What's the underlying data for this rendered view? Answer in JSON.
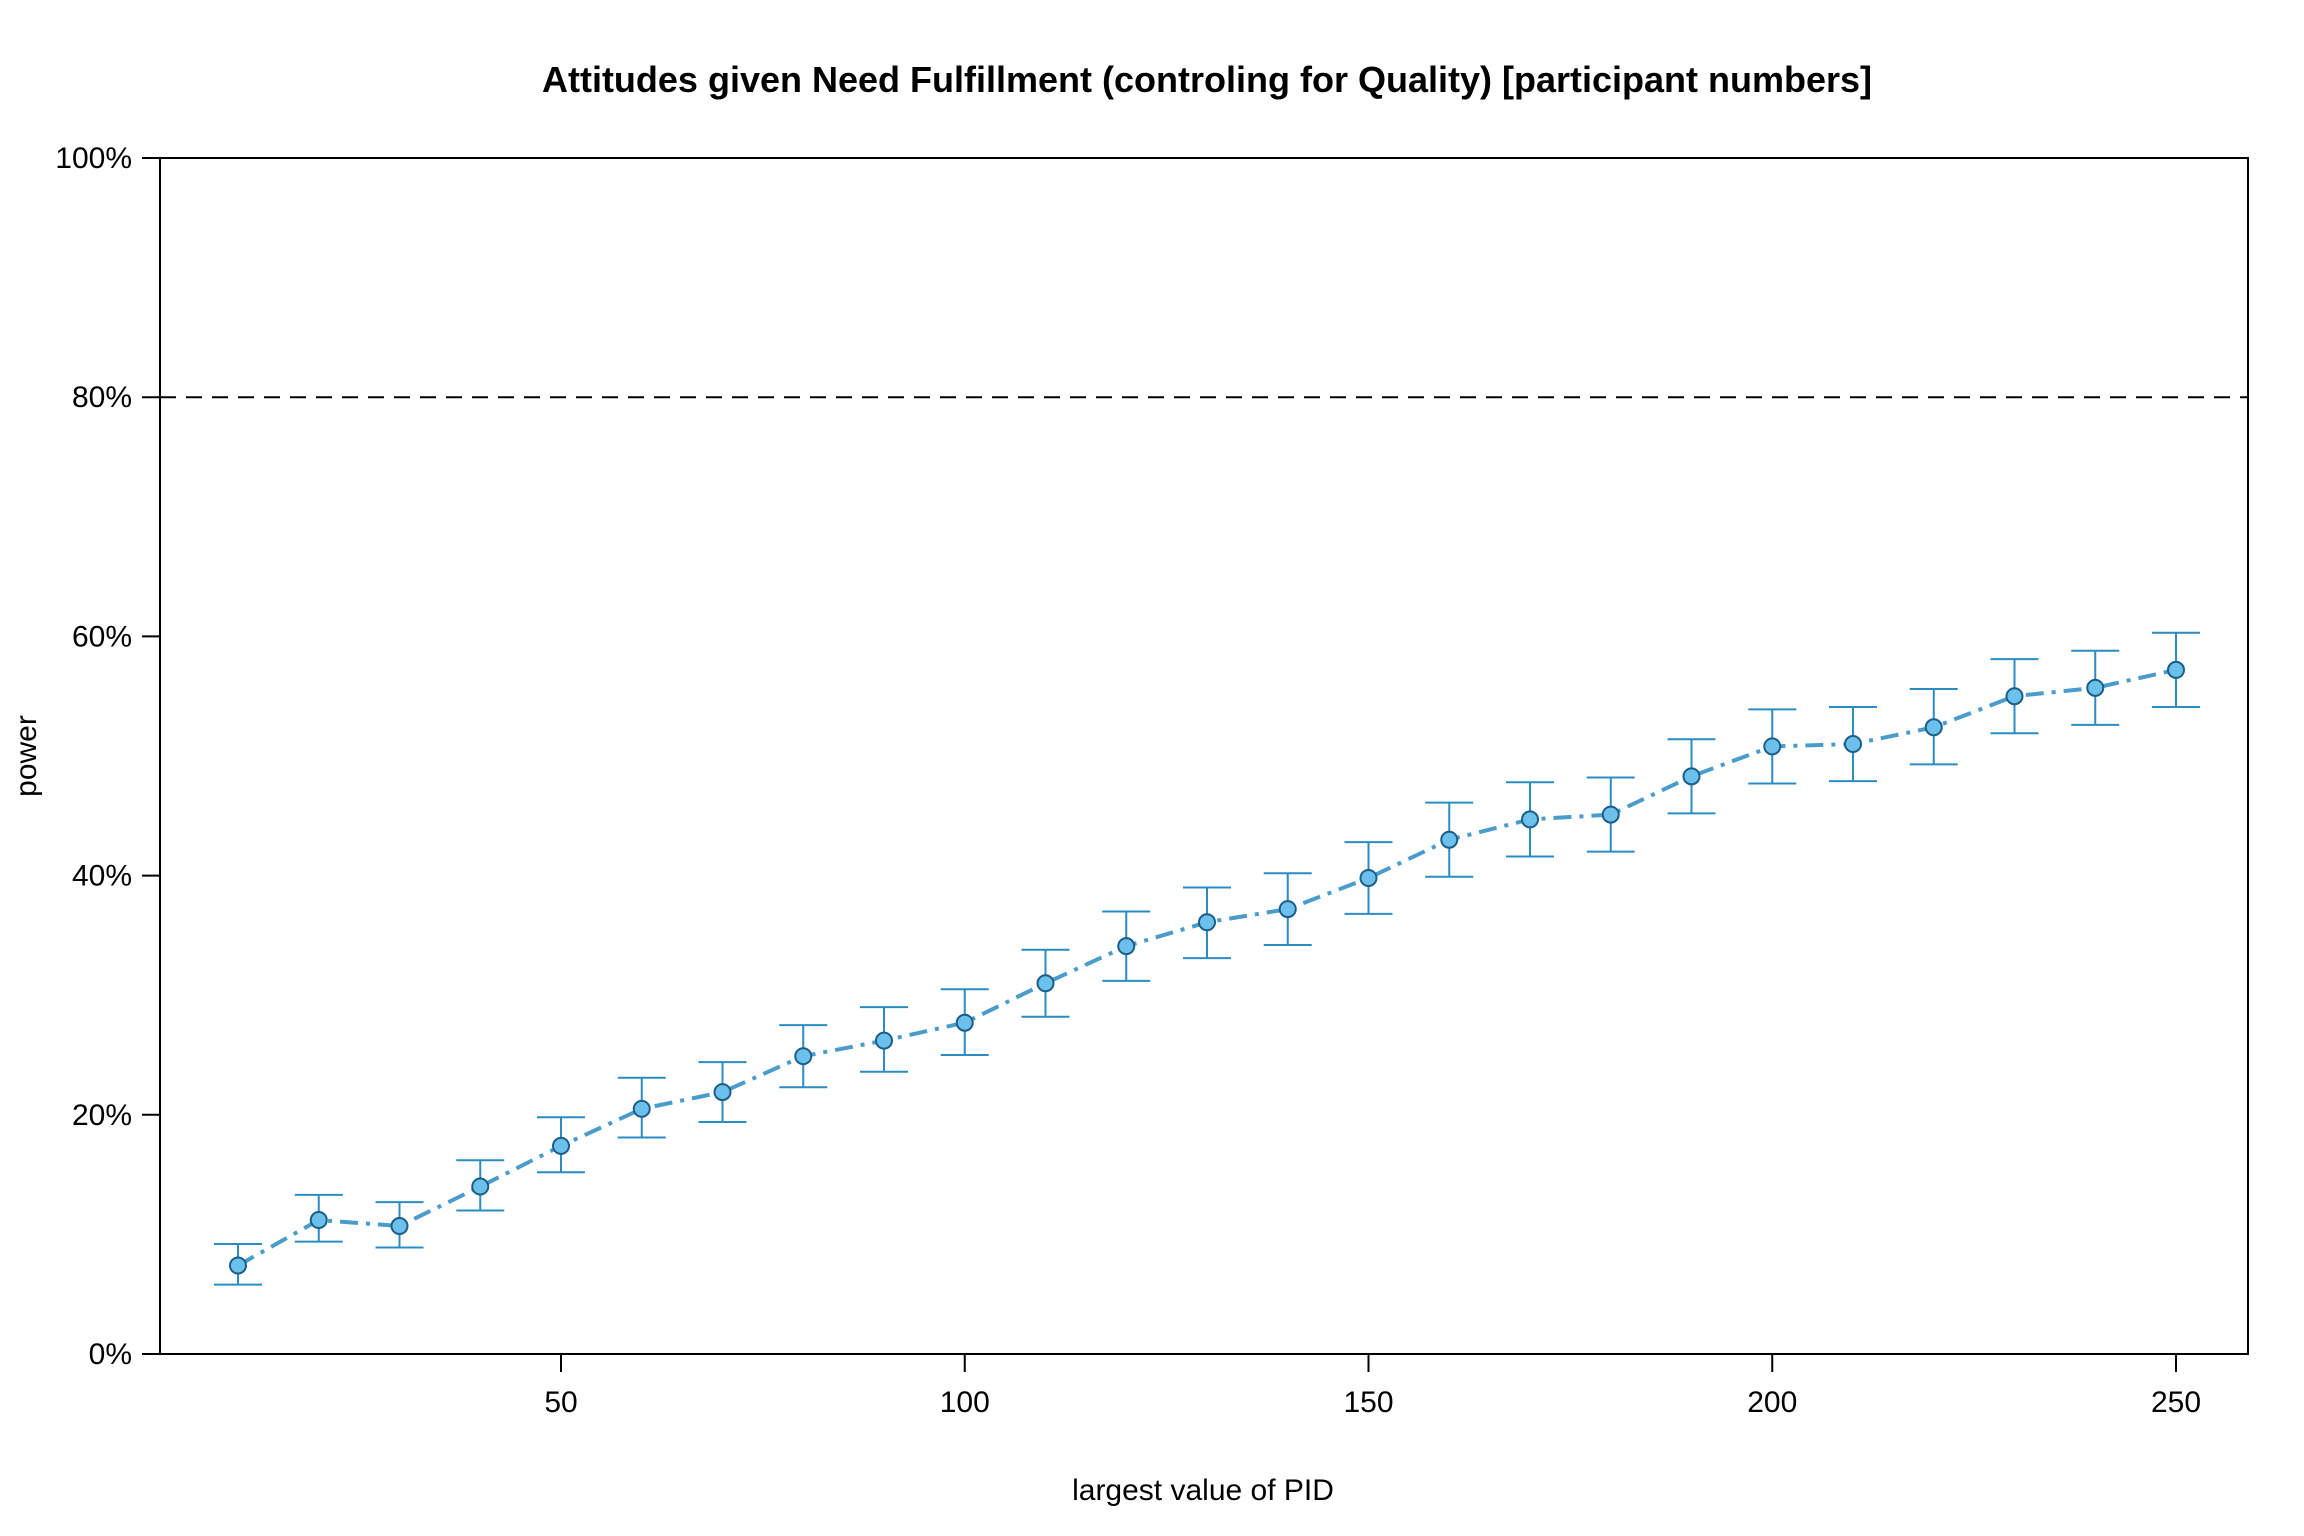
{
  "chart_data": {
    "type": "line",
    "title": "Attitudes given Need Fulfillment (controling for Quality) [participant numbers]",
    "xlabel": "largest value of PID",
    "ylabel": "power",
    "xlim": [
      0,
      260
    ],
    "ylim": [
      0,
      1
    ],
    "x_ticks": [
      50,
      100,
      150,
      200,
      250
    ],
    "y_ticks": [
      0,
      0.2,
      0.4,
      0.6,
      0.8,
      1.0
    ],
    "x_tick_labels": [
      "50",
      "100",
      "150",
      "200",
      "250"
    ],
    "y_tick_labels": [
      "0%",
      "20%",
      "40%",
      "60%",
      "80%",
      "100%"
    ],
    "reference_line": 0.8,
    "grid": false,
    "colors": {
      "series": "#2b8cc4",
      "marker_fill": "#6cc0ec",
      "marker_edge": "#1b5e88",
      "reference": "#000000"
    },
    "x": [
      10,
      20,
      30,
      40,
      50,
      60,
      70,
      80,
      90,
      100,
      110,
      120,
      130,
      140,
      150,
      160,
      170,
      180,
      190,
      200,
      210,
      220,
      230,
      240,
      250
    ],
    "series": [
      {
        "values": [
          0.074,
          0.112,
          0.107,
          0.14,
          0.174,
          0.205,
          0.219,
          0.249,
          0.262,
          0.277,
          0.31,
          0.341,
          0.361,
          0.372,
          0.398,
          0.43,
          0.447,
          0.451,
          0.483,
          0.508,
          0.51,
          0.524,
          0.55,
          0.557,
          0.572
        ],
        "lower": [
          0.058,
          0.094,
          0.089,
          0.12,
          0.152,
          0.181,
          0.194,
          0.223,
          0.236,
          0.25,
          0.282,
          0.312,
          0.331,
          0.342,
          0.368,
          0.399,
          0.416,
          0.42,
          0.452,
          0.477,
          0.479,
          0.493,
          0.519,
          0.526,
          0.541
        ],
        "upper": [
          0.092,
          0.133,
          0.127,
          0.162,
          0.198,
          0.231,
          0.244,
          0.275,
          0.29,
          0.305,
          0.338,
          0.37,
          0.39,
          0.402,
          0.428,
          0.461,
          0.478,
          0.482,
          0.514,
          0.539,
          0.541,
          0.556,
          0.581,
          0.588,
          0.603
        ]
      }
    ]
  }
}
